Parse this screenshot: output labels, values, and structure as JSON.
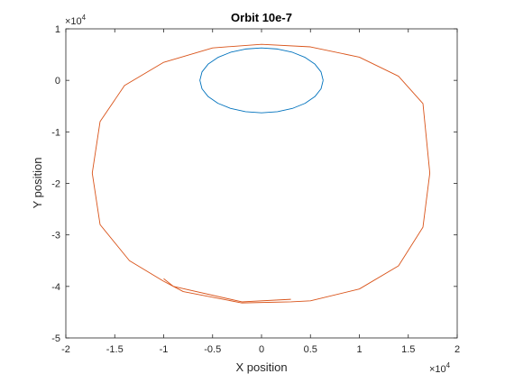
{
  "chart_data": {
    "type": "line",
    "title": "Orbit 10e-7",
    "xlabel": "X position",
    "ylabel": "Y position",
    "xlim": [
      -20000,
      20000
    ],
    "ylim": [
      -50000,
      10000
    ],
    "x_ticks": [
      -20000,
      -15000,
      -10000,
      -5000,
      0,
      5000,
      10000,
      15000,
      20000
    ],
    "y_ticks": [
      -50000,
      -40000,
      -30000,
      -20000,
      -10000,
      0,
      10000
    ],
    "x_tick_labels": [
      "-2",
      "-1.5",
      "-1",
      "-0.5",
      "0",
      "0.5",
      "1",
      "1.5",
      "2"
    ],
    "y_tick_labels": [
      "-5",
      "-4",
      "-3",
      "-2",
      "-1",
      "0",
      "1"
    ],
    "x_exponent": {
      "base": "×10",
      "power": "4"
    },
    "y_exponent": {
      "base": "×10",
      "power": "4"
    },
    "grid": false,
    "box": true,
    "series": [
      {
        "color": "#0072bd",
        "x": [
          6300,
          6085,
          5456,
          4455,
          3150,
          1631,
          0,
          -1631,
          -3150,
          -4455,
          -5456,
          -6085,
          -6300,
          -6085,
          -5456,
          -4455,
          -3150,
          -1631,
          0,
          1631,
          3150,
          4455,
          5456,
          6085,
          6300
        ],
        "y": [
          0,
          1631,
          3150,
          4455,
          5456,
          6085,
          6300,
          6085,
          5456,
          4455,
          3150,
          1631,
          0,
          -1631,
          -3150,
          -4455,
          -5456,
          -6085,
          -6300,
          -6085,
          -5456,
          -4455,
          -3150,
          -1631,
          0
        ]
      },
      {
        "color": "#d95319",
        "x": [
          0,
          5000,
          10000,
          14000,
          16500,
          17200,
          16500,
          14000,
          10000,
          5000,
          3000,
          -2000,
          -8000,
          -10000,
          -13500,
          -16500,
          -17300,
          -16500,
          -14000,
          -10000,
          -5000,
          0
        ],
        "y": [
          7000,
          6500,
          4500,
          800,
          -4500,
          -18000,
          -28500,
          -36000,
          -40500,
          -42800,
          -43000,
          -43200,
          -41000,
          -39000,
          -35000,
          -28000,
          -18000,
          -8000,
          -1000,
          3500,
          6300,
          7000
        ]
      },
      {
        "color": "#d95319",
        "x": [
          3000,
          -2000,
          -9000,
          -10000
        ],
        "y": [
          -42500,
          -43000,
          -40000,
          -38500
        ]
      }
    ]
  }
}
